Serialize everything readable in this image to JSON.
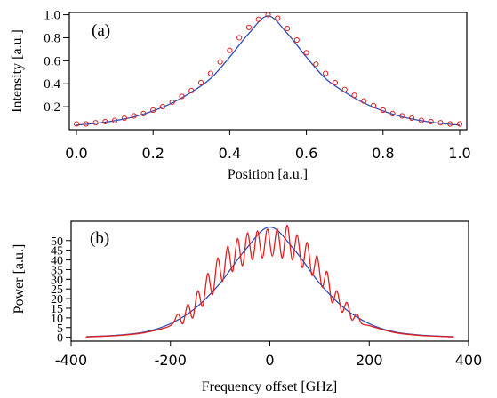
{
  "colors": {
    "fit_line": "#2f4fb8",
    "data": "#e02020",
    "axes": "#000000"
  },
  "chart_data": [
    {
      "type": "scatter",
      "panel_label": "(a)",
      "xlabel": "Position [a.u.]",
      "ylabel": "Intensity [a.u.]",
      "xlim": [
        0.0,
        1.0
      ],
      "ylim": [
        0.0,
        1.02
      ],
      "xticks": [
        0.0,
        0.2,
        0.4,
        0.6,
        0.8,
        1.0
      ],
      "xtick_labels": [
        "0.0",
        "0.2",
        "0.4",
        "0.6",
        "0.8",
        "1.0"
      ],
      "yticks": [
        0.2,
        0.4,
        0.6,
        0.8,
        1.0
      ],
      "ytick_labels": [
        "0.2",
        "0.4",
        "0.6",
        "0.8",
        "1.0"
      ],
      "grid": false,
      "series": [
        {
          "kind": "line",
          "color": "#2f4fb8",
          "x": [
            0.0,
            0.05,
            0.1,
            0.15,
            0.2,
            0.25,
            0.3,
            0.35,
            0.4,
            0.45,
            0.5,
            0.55,
            0.6,
            0.65,
            0.7,
            0.75,
            0.8,
            0.85,
            0.9,
            0.95,
            1.0
          ],
          "y": [
            0.04,
            0.055,
            0.078,
            0.112,
            0.163,
            0.233,
            0.327,
            0.445,
            0.632,
            0.838,
            0.99,
            0.838,
            0.632,
            0.445,
            0.327,
            0.233,
            0.163,
            0.112,
            0.078,
            0.055,
            0.04
          ]
        },
        {
          "kind": "markers",
          "color": "#e02020",
          "x": [
            0.0,
            0.025,
            0.05,
            0.075,
            0.1,
            0.125,
            0.15,
            0.175,
            0.2,
            0.225,
            0.25,
            0.275,
            0.3,
            0.325,
            0.35,
            0.375,
            0.4,
            0.425,
            0.45,
            0.475,
            0.5,
            0.525,
            0.55,
            0.575,
            0.6,
            0.625,
            0.65,
            0.675,
            0.7,
            0.725,
            0.75,
            0.775,
            0.8,
            0.825,
            0.85,
            0.875,
            0.9,
            0.925,
            0.95,
            0.975,
            1.0
          ],
          "y": [
            0.05,
            0.05,
            0.06,
            0.07,
            0.08,
            0.1,
            0.12,
            0.14,
            0.17,
            0.2,
            0.24,
            0.29,
            0.34,
            0.41,
            0.49,
            0.59,
            0.69,
            0.8,
            0.89,
            0.96,
            1.0,
            0.97,
            0.88,
            0.78,
            0.67,
            0.57,
            0.49,
            0.41,
            0.35,
            0.3,
            0.25,
            0.21,
            0.17,
            0.14,
            0.12,
            0.1,
            0.08,
            0.07,
            0.06,
            0.05,
            0.05
          ]
        }
      ]
    },
    {
      "type": "line",
      "panel_label": "(b)",
      "xlabel": "Frequency offset [GHz]",
      "ylabel": "Power [a.u.]",
      "xlim": [
        -400,
        400
      ],
      "ylim": [
        -2,
        60
      ],
      "xticks": [
        -400,
        -200,
        0,
        200,
        400
      ],
      "xtick_labels": [
        "-400",
        "-200",
        "0",
        "200",
        "400"
      ],
      "yticks": [
        0,
        5,
        10,
        15,
        20,
        25,
        30,
        35,
        40,
        45,
        50
      ],
      "ytick_labels": [
        "0",
        "5",
        "10",
        "15",
        "20",
        "25",
        "30",
        "35",
        "40",
        "45",
        "50"
      ],
      "grid": false,
      "series": [
        {
          "kind": "line",
          "color": "#2f4fb8",
          "x": [
            -370,
            -350,
            -300,
            -250,
            -200,
            -150,
            -100,
            -50,
            0,
            50,
            100,
            150,
            200,
            250,
            300,
            350,
            370
          ],
          "y": [
            0.3,
            0.5,
            1.2,
            2.8,
            7,
            15,
            28,
            45,
            57,
            45,
            28,
            15,
            7,
            2.8,
            1.2,
            0.5,
            0.3
          ]
        },
        {
          "kind": "line",
          "color": "#e02020",
          "x": [
            -370,
            -300,
            -250,
            -200,
            -185,
            -175,
            -165,
            -155,
            -145,
            -135,
            -125,
            -115,
            -105,
            -95,
            -85,
            -75,
            -65,
            -55,
            -45,
            -35,
            -25,
            -15,
            -5,
            5,
            15,
            25,
            35,
            45,
            55,
            65,
            75,
            85,
            95,
            105,
            115,
            125,
            135,
            145,
            155,
            165,
            175,
            185,
            200,
            250,
            300,
            370
          ],
          "y": [
            0.2,
            1.0,
            2.5,
            6,
            12,
            7,
            17,
            10,
            24,
            16,
            33,
            22,
            41,
            29,
            47,
            34,
            51,
            37,
            54,
            40,
            55,
            41,
            56,
            42,
            56,
            41,
            58,
            40,
            53,
            36,
            49,
            32,
            42,
            26,
            34,
            18,
            24,
            13,
            18,
            9,
            12,
            7,
            6,
            2.5,
            1.0,
            0.2
          ]
        }
      ]
    }
  ]
}
